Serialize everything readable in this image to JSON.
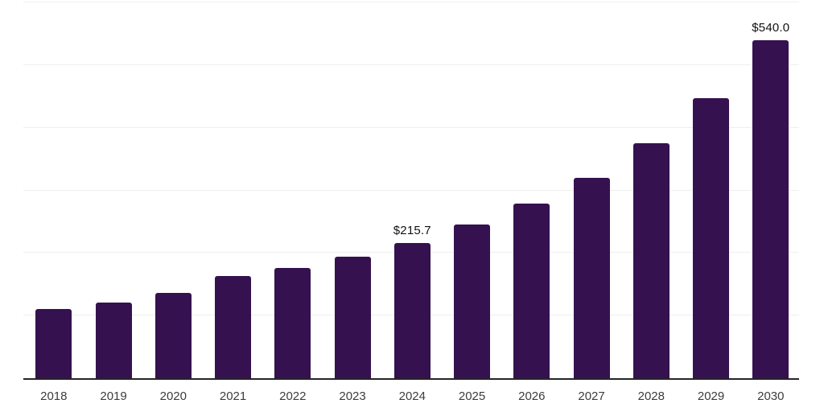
{
  "chart_data": {
    "type": "bar",
    "title": "",
    "xlabel": "",
    "ylabel": "",
    "categories": [
      "2018",
      "2019",
      "2020",
      "2021",
      "2022",
      "2023",
      "2024",
      "2025",
      "2026",
      "2027",
      "2028",
      "2029",
      "2030"
    ],
    "values": [
      110.1,
      121.2,
      135.8,
      162.8,
      176.4,
      193.6,
      215.7,
      245.0,
      279.2,
      320.3,
      375.6,
      447.5,
      540.0
    ],
    "data_labels": [
      "",
      "",
      "",
      "",
      "",
      "",
      "$215.7",
      "",
      "",
      "",
      "",
      "",
      "$540.0"
    ],
    "ylim": [
      0,
      600
    ],
    "gridline_values": [
      100,
      200,
      300,
      400,
      500,
      600
    ],
    "grid": true,
    "legend": false,
    "y_axis_labels_visible": false,
    "colors": {
      "bar": "#35124F",
      "gridline": "#efefef",
      "axis_line": "#262626",
      "tick_label": "#3c3c3c",
      "data_label": "#111111",
      "background": "#ffffff"
    }
  }
}
